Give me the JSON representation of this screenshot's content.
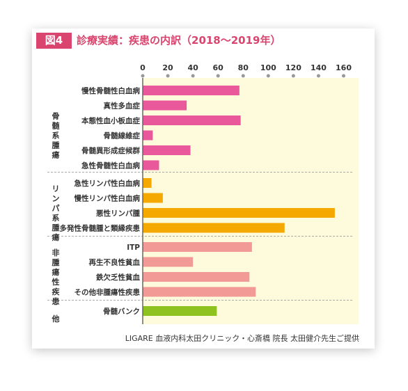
{
  "header": {
    "badge": "図4",
    "title": "診療実績：疾患の内訳（2018〜2019年）"
  },
  "footer": {
    "credit": "LIGARE 血液内科太田クリニック・心斎橋 院長 太田健介先生ご提供"
  },
  "colors": {
    "plot_bg": "#fdfbdc",
    "myeloid": "#e8589a",
    "lymphoid": "#f5a800",
    "nonmalignant": "#f29b96",
    "other": "#8dc21f",
    "accent": "#d9456e"
  },
  "chart_data": {
    "type": "bar",
    "orientation": "horizontal",
    "xlim": [
      0,
      160
    ],
    "xticks": [
      "0",
      "20",
      "40",
      "60",
      "80",
      "100",
      "120",
      "140",
      "160"
    ],
    "grid": false,
    "groups": [
      {
        "name": "骨髄系腫瘍",
        "color": "#e8589a",
        "items": [
          {
            "label": "慢性骨髄性白血病",
            "value": 77
          },
          {
            "label": "真性多血症",
            "value": 35
          },
          {
            "label": "本態性血小板血症",
            "value": 78
          },
          {
            "label": "骨髄線維症",
            "value": 8
          },
          {
            "label": "骨髄異形成症候群",
            "value": 38
          },
          {
            "label": "急性骨髄性白血病",
            "value": 13
          }
        ]
      },
      {
        "name": "リンパ系腫瘍",
        "color": "#f5a800",
        "items": [
          {
            "label": "急性リンパ性白血病",
            "value": 7
          },
          {
            "label": "慢性リンパ性白血病",
            "value": 16
          },
          {
            "label": "悪性リンパ腫",
            "value": 153
          },
          {
            "label": "多発性骨髄腫と類縁疾患",
            "value": 113
          }
        ]
      },
      {
        "name": "非腫瘍性疾患",
        "color": "#f29b96",
        "items": [
          {
            "label": "ITP",
            "value": 87
          },
          {
            "label": "再生不良性貧血",
            "value": 40
          },
          {
            "label": "鉄欠乏性貧血",
            "value": 85
          },
          {
            "label": "その他非腫瘍性疾患",
            "value": 90
          }
        ]
      },
      {
        "name": "他",
        "color": "#8dc21f",
        "items": [
          {
            "label": "骨髄バンク",
            "value": 59
          }
        ]
      }
    ]
  }
}
